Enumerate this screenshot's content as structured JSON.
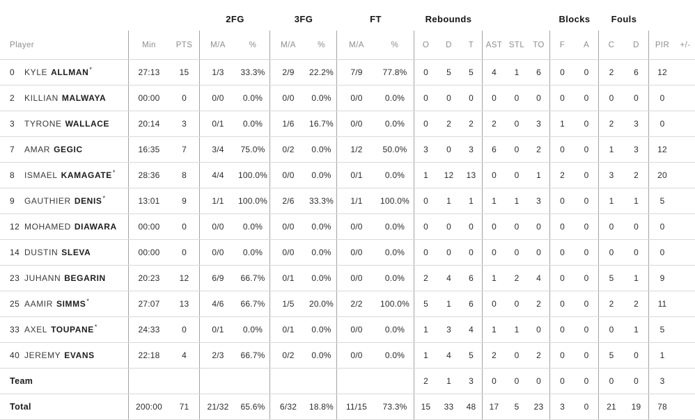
{
  "groups": {
    "fg2": "2FG",
    "fg3": "3FG",
    "ft": "FT",
    "rebounds": "Rebounds",
    "blocks": "Blocks",
    "fouls": "Fouls"
  },
  "columns": {
    "player": "Player",
    "min": "Min",
    "pts": "PTS",
    "ma": "M/A",
    "pct": "%",
    "reb_o": "O",
    "reb_d": "D",
    "reb_t": "T",
    "ast": "AST",
    "stl": "STL",
    "to": "TO",
    "blk_f": "F",
    "blk_a": "A",
    "foul_c": "C",
    "foul_d": "D",
    "pir": "PIR",
    "plus_minus": "+/-"
  },
  "rows": [
    {
      "num": "0",
      "first": "KYLE",
      "last": "ALLMAN",
      "star": "*",
      "min": "27:13",
      "pts": "15",
      "fg2_ma": "1/3",
      "fg2_pct": "33.3%",
      "fg3_ma": "2/9",
      "fg3_pct": "22.2%",
      "ft_ma": "7/9",
      "ft_pct": "77.8%",
      "reb_o": "0",
      "reb_d": "5",
      "reb_t": "5",
      "ast": "4",
      "stl": "1",
      "to": "6",
      "blk_f": "0",
      "blk_a": "0",
      "foul_c": "2",
      "foul_d": "6",
      "pir": "12",
      "plus_minus": ""
    },
    {
      "num": "2",
      "first": "KILLIAN",
      "last": "MALWAYA",
      "star": "",
      "min": "00:00",
      "pts": "0",
      "fg2_ma": "0/0",
      "fg2_pct": "0.0%",
      "fg3_ma": "0/0",
      "fg3_pct": "0.0%",
      "ft_ma": "0/0",
      "ft_pct": "0.0%",
      "reb_o": "0",
      "reb_d": "0",
      "reb_t": "0",
      "ast": "0",
      "stl": "0",
      "to": "0",
      "blk_f": "0",
      "blk_a": "0",
      "foul_c": "0",
      "foul_d": "0",
      "pir": "0",
      "plus_minus": ""
    },
    {
      "num": "3",
      "first": "TYRONE",
      "last": "WALLACE",
      "star": "",
      "min": "20:14",
      "pts": "3",
      "fg2_ma": "0/1",
      "fg2_pct": "0.0%",
      "fg3_ma": "1/6",
      "fg3_pct": "16.7%",
      "ft_ma": "0/0",
      "ft_pct": "0.0%",
      "reb_o": "0",
      "reb_d": "2",
      "reb_t": "2",
      "ast": "2",
      "stl": "0",
      "to": "3",
      "blk_f": "1",
      "blk_a": "0",
      "foul_c": "2",
      "foul_d": "3",
      "pir": "0",
      "plus_minus": ""
    },
    {
      "num": "7",
      "first": "AMAR",
      "last": "GEGIC",
      "star": "",
      "min": "16:35",
      "pts": "7",
      "fg2_ma": "3/4",
      "fg2_pct": "75.0%",
      "fg3_ma": "0/2",
      "fg3_pct": "0.0%",
      "ft_ma": "1/2",
      "ft_pct": "50.0%",
      "reb_o": "3",
      "reb_d": "0",
      "reb_t": "3",
      "ast": "6",
      "stl": "0",
      "to": "2",
      "blk_f": "0",
      "blk_a": "0",
      "foul_c": "1",
      "foul_d": "3",
      "pir": "12",
      "plus_minus": ""
    },
    {
      "num": "8",
      "first": "ISMAEL",
      "last": "KAMAGATE",
      "star": "*",
      "min": "28:36",
      "pts": "8",
      "fg2_ma": "4/4",
      "fg2_pct": "100.0%",
      "fg3_ma": "0/0",
      "fg3_pct": "0.0%",
      "ft_ma": "0/1",
      "ft_pct": "0.0%",
      "reb_o": "1",
      "reb_d": "12",
      "reb_t": "13",
      "ast": "0",
      "stl": "0",
      "to": "1",
      "blk_f": "2",
      "blk_a": "0",
      "foul_c": "3",
      "foul_d": "2",
      "pir": "20",
      "plus_minus": ""
    },
    {
      "num": "9",
      "first": "GAUTHIER",
      "last": "DENIS",
      "star": "*",
      "min": "13:01",
      "pts": "9",
      "fg2_ma": "1/1",
      "fg2_pct": "100.0%",
      "fg3_ma": "2/6",
      "fg3_pct": "33.3%",
      "ft_ma": "1/1",
      "ft_pct": "100.0%",
      "reb_o": "0",
      "reb_d": "1",
      "reb_t": "1",
      "ast": "1",
      "stl": "1",
      "to": "3",
      "blk_f": "0",
      "blk_a": "0",
      "foul_c": "1",
      "foul_d": "1",
      "pir": "5",
      "plus_minus": ""
    },
    {
      "num": "12",
      "first": "MOHAMED",
      "last": "DIAWARA",
      "star": "",
      "min": "00:00",
      "pts": "0",
      "fg2_ma": "0/0",
      "fg2_pct": "0.0%",
      "fg3_ma": "0/0",
      "fg3_pct": "0.0%",
      "ft_ma": "0/0",
      "ft_pct": "0.0%",
      "reb_o": "0",
      "reb_d": "0",
      "reb_t": "0",
      "ast": "0",
      "stl": "0",
      "to": "0",
      "blk_f": "0",
      "blk_a": "0",
      "foul_c": "0",
      "foul_d": "0",
      "pir": "0",
      "plus_minus": ""
    },
    {
      "num": "14",
      "first": "DUSTIN",
      "last": "SLEVA",
      "star": "",
      "min": "00:00",
      "pts": "0",
      "fg2_ma": "0/0",
      "fg2_pct": "0.0%",
      "fg3_ma": "0/0",
      "fg3_pct": "0.0%",
      "ft_ma": "0/0",
      "ft_pct": "0.0%",
      "reb_o": "0",
      "reb_d": "0",
      "reb_t": "0",
      "ast": "0",
      "stl": "0",
      "to": "0",
      "blk_f": "0",
      "blk_a": "0",
      "foul_c": "0",
      "foul_d": "0",
      "pir": "0",
      "plus_minus": ""
    },
    {
      "num": "23",
      "first": "JUHANN",
      "last": "BEGARIN",
      "star": "",
      "min": "20:23",
      "pts": "12",
      "fg2_ma": "6/9",
      "fg2_pct": "66.7%",
      "fg3_ma": "0/1",
      "fg3_pct": "0.0%",
      "ft_ma": "0/0",
      "ft_pct": "0.0%",
      "reb_o": "2",
      "reb_d": "4",
      "reb_t": "6",
      "ast": "1",
      "stl": "2",
      "to": "4",
      "blk_f": "0",
      "blk_a": "0",
      "foul_c": "5",
      "foul_d": "1",
      "pir": "9",
      "plus_minus": ""
    },
    {
      "num": "25",
      "first": "AAMIR",
      "last": "SIMMS",
      "star": "*",
      "min": "27:07",
      "pts": "13",
      "fg2_ma": "4/6",
      "fg2_pct": "66.7%",
      "fg3_ma": "1/5",
      "fg3_pct": "20.0%",
      "ft_ma": "2/2",
      "ft_pct": "100.0%",
      "reb_o": "5",
      "reb_d": "1",
      "reb_t": "6",
      "ast": "0",
      "stl": "0",
      "to": "2",
      "blk_f": "0",
      "blk_a": "0",
      "foul_c": "2",
      "foul_d": "2",
      "pir": "11",
      "plus_minus": ""
    },
    {
      "num": "33",
      "first": "AXEL",
      "last": "TOUPANE",
      "star": "*",
      "min": "24:33",
      "pts": "0",
      "fg2_ma": "0/1",
      "fg2_pct": "0.0%",
      "fg3_ma": "0/1",
      "fg3_pct": "0.0%",
      "ft_ma": "0/0",
      "ft_pct": "0.0%",
      "reb_o": "1",
      "reb_d": "3",
      "reb_t": "4",
      "ast": "1",
      "stl": "1",
      "to": "0",
      "blk_f": "0",
      "blk_a": "0",
      "foul_c": "0",
      "foul_d": "1",
      "pir": "5",
      "plus_minus": ""
    },
    {
      "num": "40",
      "first": "JEREMY",
      "last": "EVANS",
      "star": "",
      "min": "22:18",
      "pts": "4",
      "fg2_ma": "2/3",
      "fg2_pct": "66.7%",
      "fg3_ma": "0/2",
      "fg3_pct": "0.0%",
      "ft_ma": "0/0",
      "ft_pct": "0.0%",
      "reb_o": "1",
      "reb_d": "4",
      "reb_t": "5",
      "ast": "2",
      "stl": "0",
      "to": "2",
      "blk_f": "0",
      "blk_a": "0",
      "foul_c": "5",
      "foul_d": "0",
      "pir": "1",
      "plus_minus": ""
    }
  ],
  "team_row": {
    "label": "Team",
    "min": "",
    "pts": "",
    "fg2_ma": "",
    "fg2_pct": "",
    "fg3_ma": "",
    "fg3_pct": "",
    "ft_ma": "",
    "ft_pct": "",
    "reb_o": "2",
    "reb_d": "1",
    "reb_t": "3",
    "ast": "0",
    "stl": "0",
    "to": "0",
    "blk_f": "0",
    "blk_a": "0",
    "foul_c": "0",
    "foul_d": "0",
    "pir": "3",
    "plus_minus": ""
  },
  "total_row": {
    "label": "Total",
    "min": "200:00",
    "pts": "71",
    "fg2_ma": "21/32",
    "fg2_pct": "65.6%",
    "fg3_ma": "6/32",
    "fg3_pct": "18.8%",
    "ft_ma": "11/15",
    "ft_pct": "73.3%",
    "reb_o": "15",
    "reb_d": "33",
    "reb_t": "48",
    "ast": "17",
    "stl": "5",
    "to": "23",
    "blk_f": "3",
    "blk_a": "0",
    "foul_c": "21",
    "foul_d": "19",
    "pir": "78",
    "plus_minus": ""
  },
  "colors": {
    "header_text": "#8d8d8d",
    "data_text": "#2b2b2b",
    "vertical_divider": "#a3a3a3",
    "row_divider": "#d9d9d9",
    "background": "#ffffff"
  }
}
